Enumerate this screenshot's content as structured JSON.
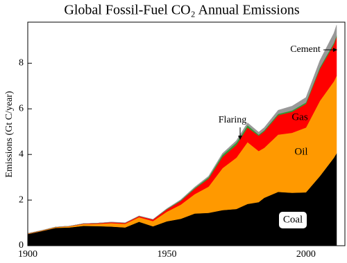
{
  "chart_data": {
    "type": "stacked-area",
    "title": "Global Fossil-Fuel CO₂ Annual Emissions",
    "y_label": "Emissions (Gt C/year)",
    "x": [
      1900,
      1905,
      1910,
      1915,
      1920,
      1925,
      1930,
      1935,
      1940,
      1945,
      1950,
      1955,
      1960,
      1965,
      1970,
      1975,
      1979,
      1983,
      1985,
      1990,
      1995,
      2000,
      2005,
      2010,
      2011
    ],
    "series": [
      {
        "name": "Coal",
        "color": "#000000",
        "values": [
          0.51,
          0.64,
          0.78,
          0.8,
          0.87,
          0.86,
          0.84,
          0.8,
          1.05,
          0.85,
          1.07,
          1.18,
          1.41,
          1.44,
          1.56,
          1.61,
          1.83,
          1.91,
          2.1,
          2.36,
          2.32,
          2.34,
          3.05,
          3.85,
          4.05
        ]
      },
      {
        "name": "Oil",
        "color": "#ff9900",
        "values": [
          0.016,
          0.02,
          0.03,
          0.05,
          0.08,
          0.1,
          0.15,
          0.16,
          0.2,
          0.23,
          0.42,
          0.62,
          0.85,
          1.15,
          1.84,
          2.25,
          2.71,
          2.24,
          2.19,
          2.51,
          2.63,
          2.84,
          3.3,
          3.35,
          3.4
        ]
      },
      {
        "name": "Gas",
        "color": "#ff0000",
        "values": [
          0.012,
          0.01,
          0.01,
          0.01,
          0.02,
          0.03,
          0.04,
          0.04,
          0.05,
          0.07,
          0.1,
          0.16,
          0.23,
          0.35,
          0.49,
          0.56,
          0.64,
          0.67,
          0.72,
          0.85,
          0.92,
          1.04,
          1.4,
          1.62,
          1.7
        ]
      },
      {
        "name": "Flaring",
        "color": "#339933",
        "values": [
          0,
          0,
          0,
          0,
          0,
          0,
          0,
          0,
          0,
          0,
          0.02,
          0.03,
          0.04,
          0.06,
          0.09,
          0.1,
          0.1,
          0.05,
          0.05,
          0.06,
          0.06,
          0.06,
          0.07,
          0.07,
          0.07
        ]
      },
      {
        "name": "Cement",
        "color": "#999999",
        "values": [
          0,
          0,
          0,
          0,
          0,
          0,
          0.01,
          0.01,
          0.01,
          0.01,
          0.02,
          0.03,
          0.04,
          0.05,
          0.07,
          0.09,
          0.11,
          0.11,
          0.12,
          0.16,
          0.19,
          0.22,
          0.3,
          0.42,
          0.45
        ]
      }
    ],
    "xlim": [
      1900,
      2014
    ],
    "xticks": [
      1900,
      1950,
      2000
    ],
    "ylim": [
      0,
      9.8
    ],
    "yticks": [
      0,
      2,
      4,
      6,
      8
    ]
  }
}
